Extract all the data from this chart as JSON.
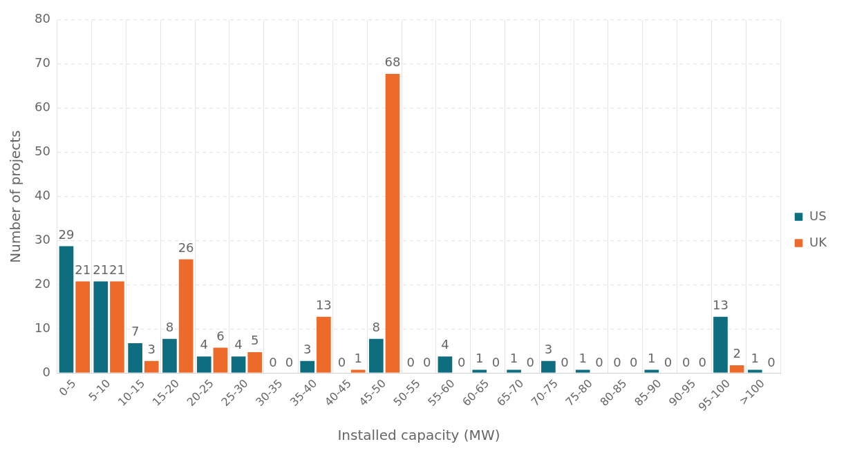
{
  "chart_data": {
    "type": "bar",
    "xlabel": "Installed capacity (MW)",
    "ylabel": "Number of projects",
    "categories": [
      "0-5",
      "5-10",
      "10-15",
      "15-20",
      "20-25",
      "25-30",
      "30-35",
      "35-40",
      "40-45",
      "45-50",
      "50-55",
      "55-60",
      "60-65",
      "65-70",
      "70-75",
      "75-80",
      "80-85",
      "85-90",
      "90-95",
      "95-100",
      ">100"
    ],
    "series": [
      {
        "name": "US",
        "color": "#0e6e80",
        "values": [
          29,
          21,
          7,
          8,
          4,
          4,
          0,
          3,
          0,
          8,
          0,
          4,
          1,
          1,
          3,
          1,
          0,
          1,
          0,
          13,
          1
        ]
      },
      {
        "name": "UK",
        "color": "#ee6a2a",
        "values": [
          21,
          21,
          3,
          26,
          6,
          5,
          0,
          13,
          1,
          68,
          0,
          0,
          0,
          0,
          0,
          0,
          0,
          0,
          0,
          2,
          0
        ]
      }
    ],
    "ylim": [
      0,
      80
    ],
    "yticks": [
      0,
      10,
      20,
      30,
      40,
      50,
      60,
      70,
      80
    ],
    "grid": true,
    "legend": "right",
    "data_labels": true
  }
}
